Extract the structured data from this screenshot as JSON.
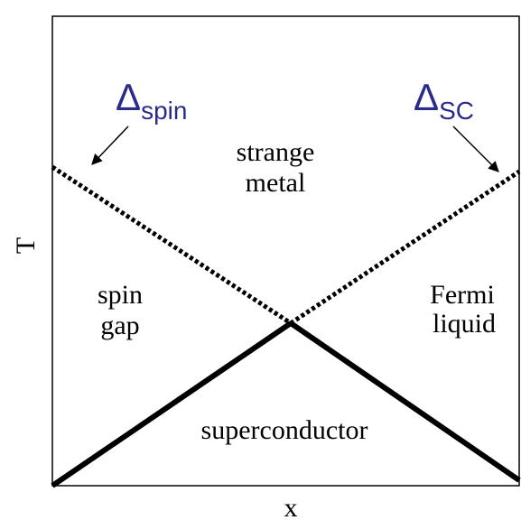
{
  "axes": {
    "y_label": "T",
    "x_label": "x"
  },
  "gap_labels": [
    {
      "symbol": "Δ",
      "subscript": "spin"
    },
    {
      "symbol": "Δ",
      "subscript": "SC"
    }
  ],
  "regions": {
    "strange_metal": [
      "strange",
      "metal"
    ],
    "spin_gap": [
      "spin",
      "gap"
    ],
    "fermi_liquid": [
      "Fermi",
      "liquid"
    ],
    "superconductor": "superconductor"
  }
}
